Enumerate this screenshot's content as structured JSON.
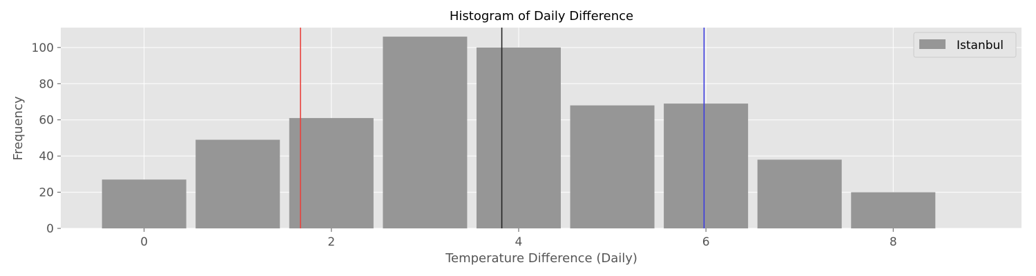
{
  "chart_data": {
    "type": "bar",
    "title": "Histogram of Daily Difference",
    "xlabel": "Temperature Difference (Daily)",
    "ylabel": "Frequency",
    "x": [
      0,
      1,
      2,
      3,
      4,
      5,
      6,
      7,
      8
    ],
    "bar_width": 0.9,
    "series": [
      {
        "name": "Istanbul",
        "values": [
          27,
          49,
          61,
          106,
          100,
          68,
          69,
          38,
          20
        ],
        "color": "#969696"
      }
    ],
    "vlines": [
      {
        "x": 1.67,
        "color": "#e8413c"
      },
      {
        "x": 3.82,
        "color": "#222222"
      },
      {
        "x": 5.98,
        "color": "#3a3ae0"
      }
    ],
    "xlim": [
      -0.89,
      9.37
    ],
    "ylim": [
      0,
      111
    ],
    "xticks": [
      0,
      2,
      4,
      6,
      8
    ],
    "yticks": [
      0,
      20,
      40,
      60,
      80,
      100
    ],
    "grid": true,
    "legend_position": "top-right",
    "background_color": "#e5e5e5",
    "grid_color": "#ffffff"
  }
}
